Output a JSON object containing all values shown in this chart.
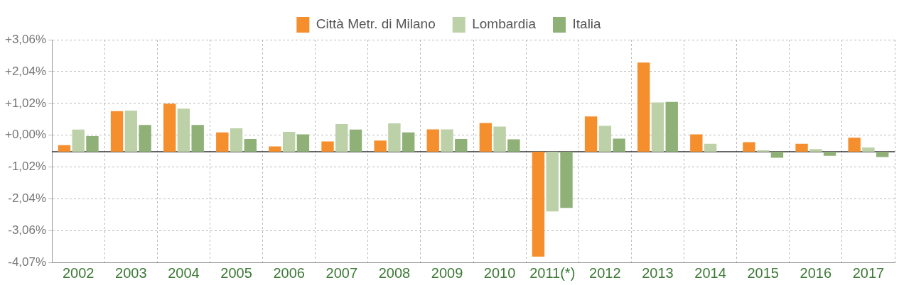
{
  "chart_data": {
    "type": "bar",
    "categories": [
      "2002",
      "2003",
      "2004",
      "2005",
      "2006",
      "2007",
      "2008",
      "2009",
      "2010",
      "2011(*)",
      "2012",
      "2013",
      "2014",
      "2015",
      "2016",
      "2017"
    ],
    "series": [
      {
        "name": "Città Metr. di Milano",
        "color": "#f58f2e",
        "base": [
          -0.53,
          -0.53,
          -0.53,
          -0.53,
          -0.53,
          -0.53,
          -0.53,
          -0.53,
          -0.53,
          -0.53,
          -0.53,
          -0.53,
          -0.53,
          -0.53,
          -0.53,
          -0.53
        ],
        "values": [
          0.21,
          1.3,
          1.54,
          0.62,
          0.17,
          0.33,
          0.36,
          0.72,
          0.92,
          -3.36,
          1.13,
          2.86,
          0.56,
          0.31,
          0.26,
          0.45
        ]
      },
      {
        "name": "Lombardia",
        "color": "#bdd1a8",
        "base": [
          -0.53,
          -0.53,
          -0.53,
          -0.53,
          -0.53,
          -0.53,
          -0.53,
          -0.53,
          -0.53,
          -0.53,
          -0.53,
          -0.53,
          -0.53,
          -0.53,
          -0.53,
          -0.53
        ],
        "values": [
          0.71,
          1.32,
          1.38,
          0.75,
          0.64,
          0.89,
          0.91,
          0.72,
          0.81,
          -1.91,
          0.83,
          1.58,
          0.26,
          0.05,
          0.09,
          0.14
        ]
      },
      {
        "name": "Italia",
        "color": "#8fb077",
        "base": [
          -0.53,
          -0.53,
          -0.53,
          -0.53,
          -0.53,
          -0.53,
          -0.53,
          -0.53,
          -0.53,
          -0.53,
          -0.53,
          -0.53,
          null,
          -0.53,
          -0.53,
          -0.53
        ],
        "values": [
          0.5,
          0.86,
          0.86,
          0.41,
          0.56,
          0.71,
          0.62,
          0.41,
          0.4,
          -1.8,
          0.42,
          1.6,
          null,
          -0.19,
          -0.13,
          -0.17
        ]
      }
    ],
    "ylim": [
      -4.07,
      3.06
    ],
    "yticks": [
      {
        "value": 3.06,
        "label": "+3,06%"
      },
      {
        "value": 2.04,
        "label": "+2,04%"
      },
      {
        "value": 1.02,
        "label": "+1,02%"
      },
      {
        "value": 0,
        "label": "+0,00%"
      },
      {
        "value": -1.02,
        "label": "-1,02%"
      },
      {
        "value": -2.04,
        "label": "-2,04%"
      },
      {
        "value": -3.06,
        "label": "-3,06%"
      },
      {
        "value": -4.07,
        "label": "-4,07%"
      }
    ],
    "ref_lines": [
      {
        "axis": "y",
        "value": -0.53,
        "color": "#333333"
      }
    ],
    "grid": true,
    "legend": "top"
  }
}
